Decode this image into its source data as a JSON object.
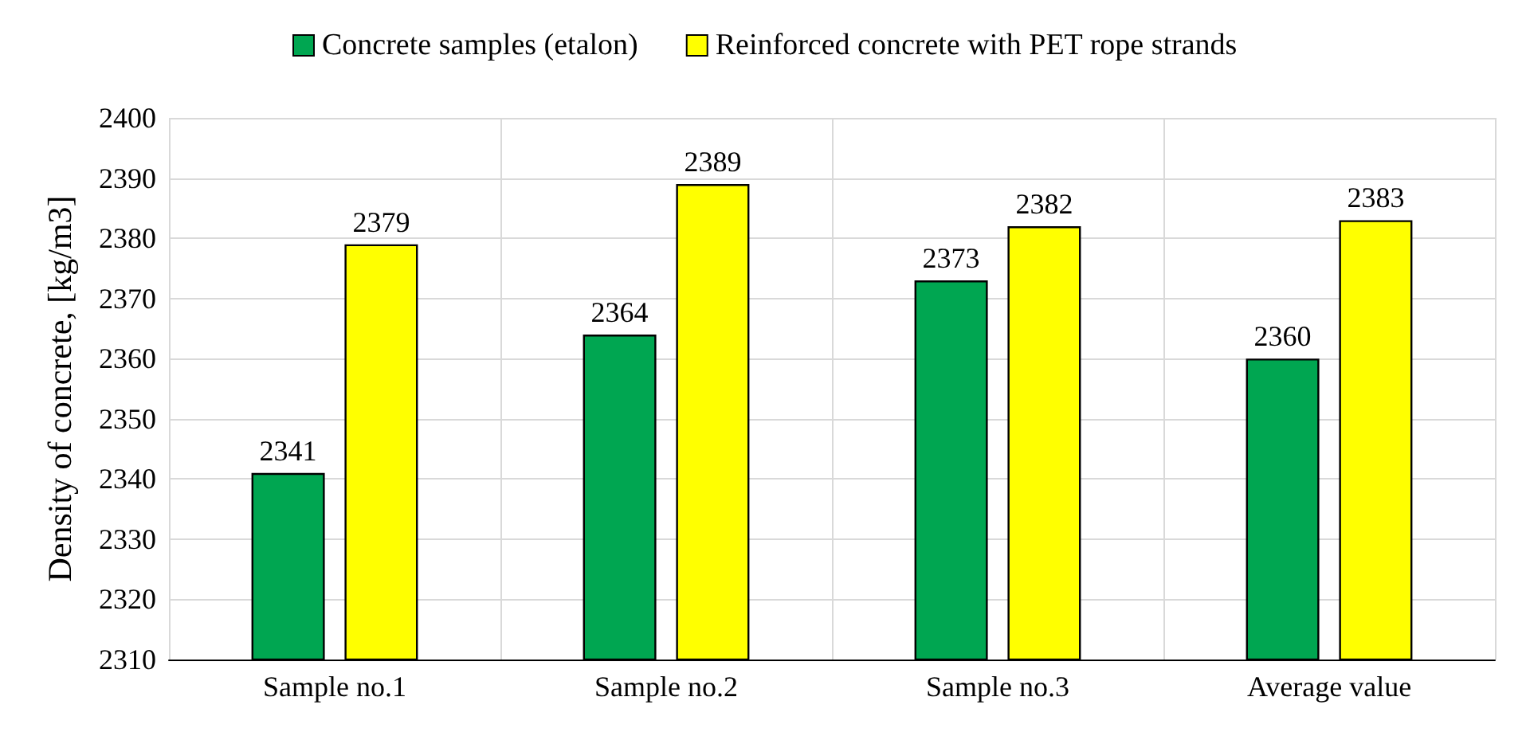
{
  "chart_data": {
    "type": "bar",
    "ylabel": "Density of concrete, [kg/m3]",
    "categories": [
      "Sample no.1",
      "Sample no.2",
      "Sample no.3",
      "Average value"
    ],
    "series": [
      {
        "name": "Concrete samples (etalon)",
        "color": "#00a651",
        "values": [
          2341,
          2364,
          2373,
          2360
        ]
      },
      {
        "name": "Reinforced concrete with PET rope strands",
        "color": "#ffff00",
        "values": [
          2379,
          2389,
          2382,
          2383
        ]
      }
    ],
    "ylim": [
      2310,
      2400
    ],
    "yticks": [
      2310,
      2320,
      2330,
      2340,
      2350,
      2360,
      2370,
      2380,
      2390,
      2400
    ],
    "grid": true,
    "legend": "top",
    "data_labels": true
  }
}
